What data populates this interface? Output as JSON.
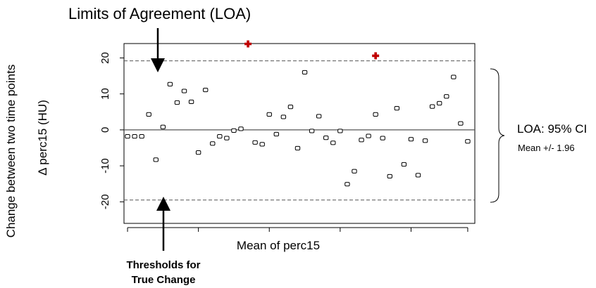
{
  "annotations": {
    "title": "Limits of Agreement (LOA)",
    "y_outer_label": "Change between two time points",
    "loa_ci_label": "LOA: 95% CI",
    "loa_mean_label": "Mean +/- 1.96",
    "threshold_line1": "Thresholds for",
    "threshold_line2": "True Change"
  },
  "colors": {
    "outlier": "#c00000",
    "points": "#000000",
    "reference_lines": "#555555"
  },
  "chart_data": {
    "type": "scatter",
    "xlabel": "Mean of perc15",
    "ylabel": "Δ perc15 (HU)",
    "ylim": [
      -26,
      24
    ],
    "yticks": [
      -20,
      -10,
      0,
      10,
      20
    ],
    "ytick_labels": [
      "-20",
      "-10",
      "0",
      "10",
      "20"
    ],
    "xlim": [
      0.5,
      50
    ],
    "x_ticks_unlabeled": [
      1,
      11,
      21,
      31,
      41,
      49
    ],
    "grid": false,
    "hlines": [
      {
        "y": 19.2,
        "style": "dashed"
      },
      {
        "y": 0,
        "style": "solid"
      },
      {
        "y": -19.5,
        "style": "dashed"
      }
    ],
    "series": [
      {
        "marker": "open-square",
        "x": [
          1,
          2,
          3,
          4,
          5,
          6,
          7,
          8,
          9,
          10,
          11,
          12,
          13,
          14,
          15,
          16,
          17,
          19,
          20,
          21,
          22,
          23,
          24,
          25,
          26,
          27,
          28,
          29,
          30,
          31,
          32,
          33,
          34,
          35,
          36,
          37,
          38,
          39,
          40,
          41,
          42,
          43,
          44,
          45,
          46,
          47,
          48,
          49
        ],
        "y": [
          -1.8,
          -1.8,
          -1.8,
          4.3,
          -8.3,
          0.8,
          12.7,
          7.6,
          10.8,
          7.8,
          -6.3,
          11.1,
          -3.8,
          -1.8,
          -2.3,
          -0.2,
          0.3,
          -3.5,
          -4.0,
          4.3,
          -1.2,
          3.6,
          6.4,
          -5.1,
          16.0,
          -0.3,
          3.8,
          -2.2,
          -3.6,
          -0.3,
          -15.1,
          -11.5,
          -2.8,
          -1.7,
          4.3,
          -2.3,
          -12.9,
          6.0,
          -9.6,
          -2.6,
          -12.6,
          -3.0,
          6.5,
          7.4,
          9.3,
          14.7,
          1.8,
          -3.2
        ]
      },
      {
        "marker": "filled-cross",
        "x": [
          18,
          36
        ],
        "y": [
          23.9,
          20.6
        ]
      }
    ]
  }
}
